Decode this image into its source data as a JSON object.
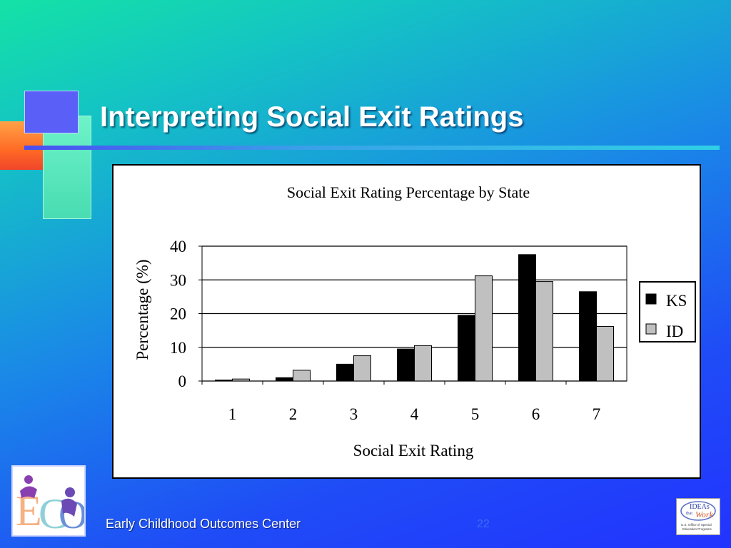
{
  "slide": {
    "title": "Interpreting Social Exit Ratings",
    "footer": "Early Childhood Outcomes Center",
    "page_number": "22",
    "logo_left": "ECO",
    "logo_right": "IDEAs that Work U.S. Office of Special Education Programs"
  },
  "colors": {
    "ks": "#000000",
    "id": "#c0c0c0"
  },
  "chart_data": {
    "type": "bar",
    "title": "Social Exit Rating Percentage by State",
    "xlabel": "Social Exit Rating",
    "ylabel": "Percentage (%)",
    "categories": [
      "1",
      "2",
      "3",
      "4",
      "5",
      "6",
      "7"
    ],
    "series": [
      {
        "name": "KS",
        "values": [
          0.3,
          1,
          5,
          9.5,
          19.5,
          37.5,
          26.5
        ]
      },
      {
        "name": "ID",
        "values": [
          0.6,
          3.2,
          7.5,
          10.5,
          31.2,
          29.5,
          16.2
        ]
      }
    ],
    "ylim": [
      0,
      40
    ],
    "yticks": [
      "0",
      "10",
      "20",
      "30",
      "40"
    ],
    "grid": true,
    "legend": "right"
  }
}
